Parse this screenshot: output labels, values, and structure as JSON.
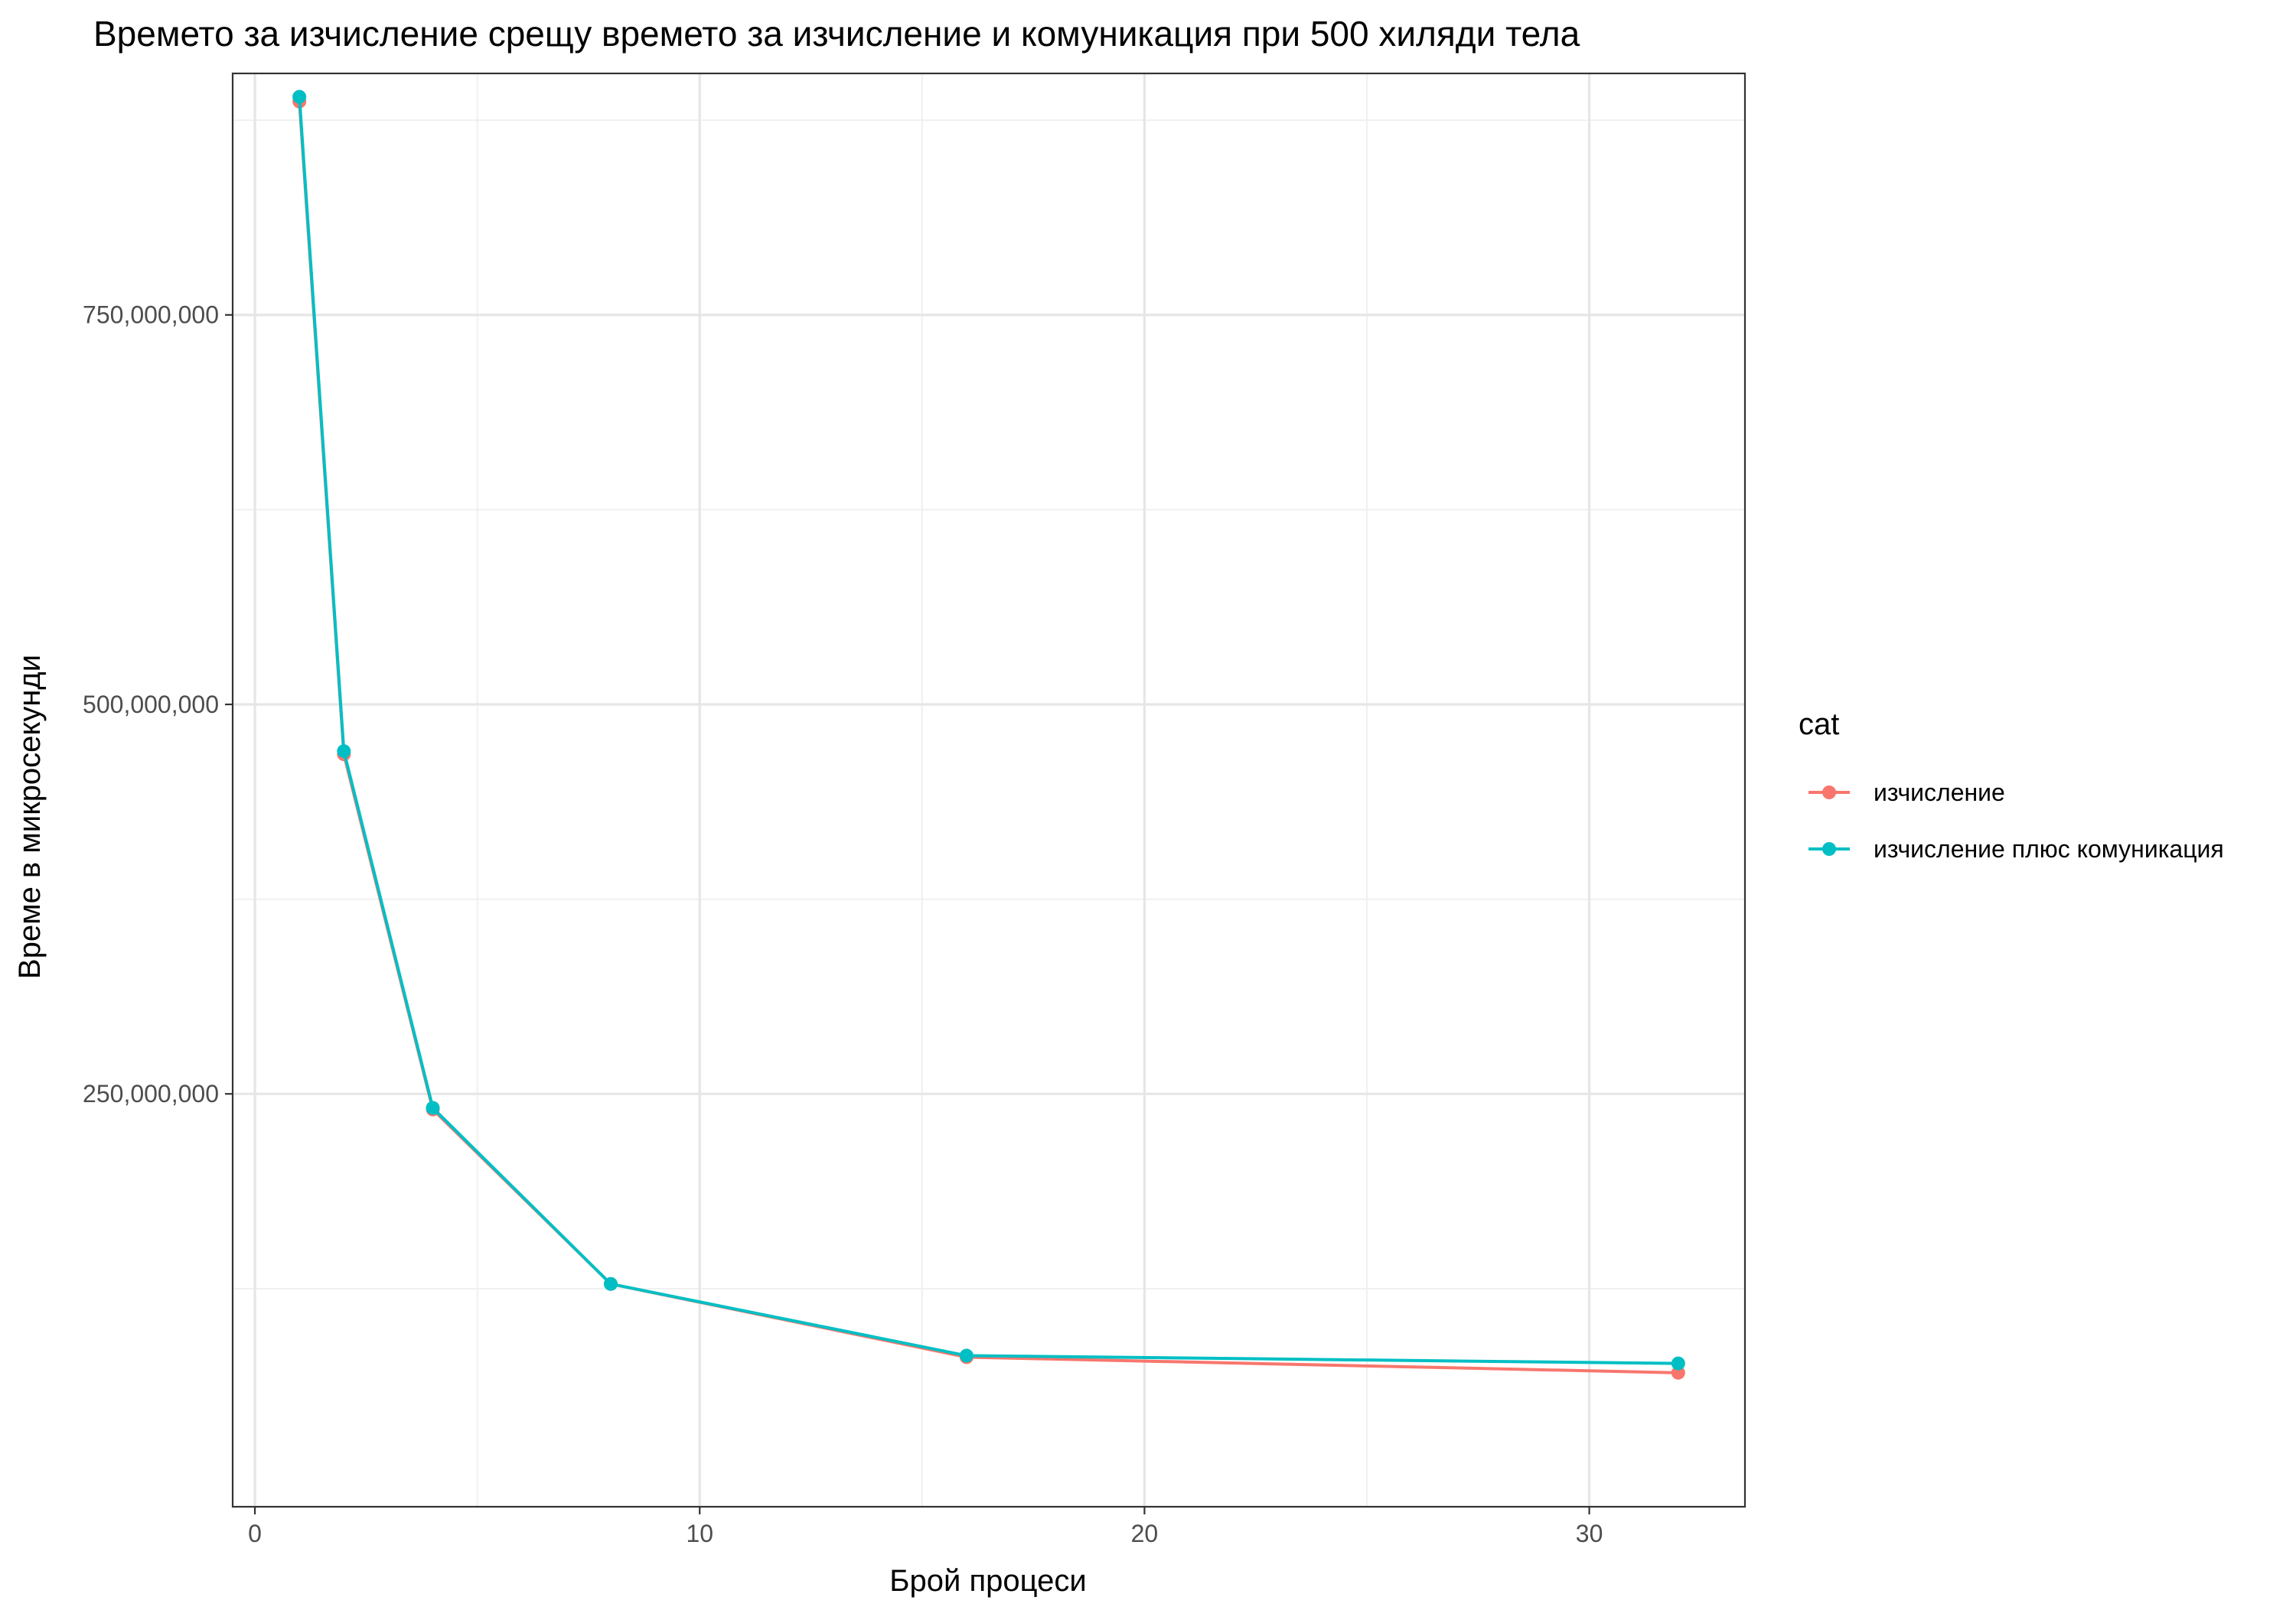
{
  "chart_data": {
    "type": "line",
    "title": "Времето за изчисление срещу времето за изчисление и комуникация при 500 хиляди тела",
    "xlabel": "Брой процеси",
    "ylabel": "Време в микросекунди",
    "xlim": [
      -0.5,
      33.5
    ],
    "ylim": [
      -15000000,
      905000000
    ],
    "x_ticks": [
      0,
      10,
      20,
      30
    ],
    "x_tick_labels": [
      "0",
      "10",
      "20",
      "30"
    ],
    "y_ticks": [
      250000000,
      500000000,
      750000000
    ],
    "y_tick_labels": [
      "250,000,000",
      "500,000,000",
      "750,000,000"
    ],
    "grid": true,
    "legend": {
      "title": "cat",
      "position": "right"
    },
    "x": [
      1,
      2,
      4,
      8,
      16,
      32
    ],
    "series": [
      {
        "name": "изчисление",
        "color": "#F8766D",
        "values": [
          887000000,
          468000000,
          240000000,
          128000000,
          81000000,
          71000000
        ]
      },
      {
        "name": "изчисление плюс комуникация",
        "color": "#00BFC4",
        "values": [
          890000000,
          470000000,
          241000000,
          128000000,
          82000000,
          77000000
        ]
      }
    ]
  }
}
